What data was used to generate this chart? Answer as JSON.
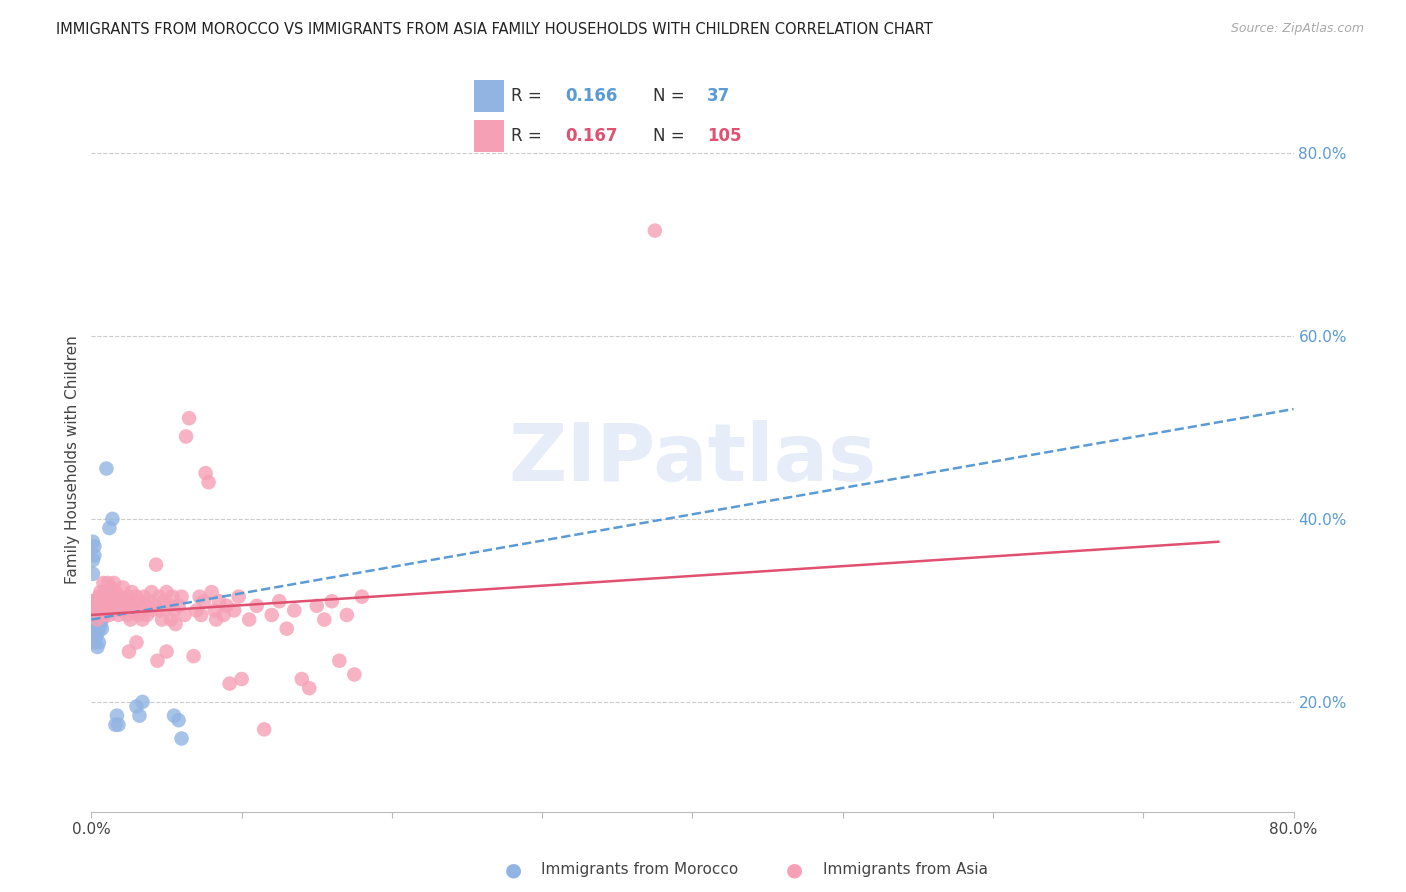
{
  "title": "IMMIGRANTS FROM MOROCCO VS IMMIGRANTS FROM ASIA FAMILY HOUSEHOLDS WITH CHILDREN CORRELATION CHART",
  "source": "Source: ZipAtlas.com",
  "ylabel": "Family Households with Children",
  "xmin": 0.0,
  "xmax": 0.8,
  "ymin": 0.08,
  "ymax": 0.85,
  "right_yticks": [
    0.2,
    0.4,
    0.6,
    0.8
  ],
  "right_ytick_labels": [
    "20.0%",
    "40.0%",
    "60.0%",
    "80.0%"
  ],
  "morocco_color": "#92b4e3",
  "asia_color": "#f5a0b5",
  "morocco_R": 0.166,
  "morocco_N": 37,
  "asia_R": 0.167,
  "asia_N": 105,
  "watermark": "ZIPatlas",
  "background_color": "#ffffff",
  "grid_color": "#cccccc",
  "axis_label_color": "#5b9bd5",
  "morocco_line_color": "#5b9bd5",
  "asia_line_color": "#e05070",
  "legend_R_color": "#5b9bd5",
  "legend_N_color": "#5b9bd5",
  "legend_R2_color": "#e05070",
  "legend_N2_color": "#e05070",
  "morocco_scatter": [
    [
      0.001,
      0.31
    ],
    [
      0.001,
      0.355
    ],
    [
      0.001,
      0.375
    ],
    [
      0.001,
      0.34
    ],
    [
      0.002,
      0.36
    ],
    [
      0.002,
      0.37
    ],
    [
      0.002,
      0.28
    ],
    [
      0.002,
      0.265
    ],
    [
      0.003,
      0.29
    ],
    [
      0.003,
      0.305
    ],
    [
      0.003,
      0.295
    ],
    [
      0.003,
      0.27
    ],
    [
      0.004,
      0.3
    ],
    [
      0.004,
      0.285
    ],
    [
      0.004,
      0.275
    ],
    [
      0.004,
      0.26
    ],
    [
      0.005,
      0.31
    ],
    [
      0.005,
      0.295
    ],
    [
      0.005,
      0.28
    ],
    [
      0.005,
      0.265
    ],
    [
      0.006,
      0.3
    ],
    [
      0.006,
      0.285
    ],
    [
      0.007,
      0.29
    ],
    [
      0.007,
      0.28
    ],
    [
      0.008,
      0.295
    ],
    [
      0.01,
      0.455
    ],
    [
      0.012,
      0.39
    ],
    [
      0.014,
      0.4
    ],
    [
      0.016,
      0.175
    ],
    [
      0.017,
      0.185
    ],
    [
      0.018,
      0.175
    ],
    [
      0.03,
      0.195
    ],
    [
      0.032,
      0.185
    ],
    [
      0.034,
      0.2
    ],
    [
      0.055,
      0.185
    ],
    [
      0.058,
      0.18
    ],
    [
      0.06,
      0.16
    ]
  ],
  "asia_scatter": [
    [
      0.001,
      0.31
    ],
    [
      0.002,
      0.295
    ],
    [
      0.003,
      0.305
    ],
    [
      0.004,
      0.29
    ],
    [
      0.005,
      0.315
    ],
    [
      0.005,
      0.3
    ],
    [
      0.006,
      0.32
    ],
    [
      0.006,
      0.31
    ],
    [
      0.007,
      0.295
    ],
    [
      0.007,
      0.315
    ],
    [
      0.008,
      0.305
    ],
    [
      0.008,
      0.33
    ],
    [
      0.009,
      0.31
    ],
    [
      0.009,
      0.295
    ],
    [
      0.01,
      0.32
    ],
    [
      0.01,
      0.3
    ],
    [
      0.011,
      0.33
    ],
    [
      0.011,
      0.315
    ],
    [
      0.012,
      0.295
    ],
    [
      0.012,
      0.31
    ],
    [
      0.013,
      0.325
    ],
    [
      0.013,
      0.305
    ],
    [
      0.014,
      0.315
    ],
    [
      0.014,
      0.3
    ],
    [
      0.015,
      0.33
    ],
    [
      0.016,
      0.32
    ],
    [
      0.017,
      0.31
    ],
    [
      0.018,
      0.295
    ],
    [
      0.019,
      0.315
    ],
    [
      0.02,
      0.3
    ],
    [
      0.021,
      0.325
    ],
    [
      0.022,
      0.31
    ],
    [
      0.023,
      0.305
    ],
    [
      0.024,
      0.295
    ],
    [
      0.025,
      0.315
    ],
    [
      0.025,
      0.255
    ],
    [
      0.026,
      0.305
    ],
    [
      0.026,
      0.29
    ],
    [
      0.027,
      0.32
    ],
    [
      0.028,
      0.3
    ],
    [
      0.03,
      0.315
    ],
    [
      0.03,
      0.265
    ],
    [
      0.031,
      0.295
    ],
    [
      0.032,
      0.31
    ],
    [
      0.033,
      0.3
    ],
    [
      0.034,
      0.29
    ],
    [
      0.035,
      0.315
    ],
    [
      0.036,
      0.305
    ],
    [
      0.037,
      0.295
    ],
    [
      0.038,
      0.31
    ],
    [
      0.04,
      0.32
    ],
    [
      0.04,
      0.3
    ],
    [
      0.042,
      0.305
    ],
    [
      0.043,
      0.35
    ],
    [
      0.044,
      0.245
    ],
    [
      0.045,
      0.315
    ],
    [
      0.046,
      0.3
    ],
    [
      0.047,
      0.29
    ],
    [
      0.048,
      0.31
    ],
    [
      0.05,
      0.32
    ],
    [
      0.05,
      0.255
    ],
    [
      0.052,
      0.305
    ],
    [
      0.053,
      0.29
    ],
    [
      0.054,
      0.315
    ],
    [
      0.055,
      0.3
    ],
    [
      0.056,
      0.285
    ],
    [
      0.058,
      0.305
    ],
    [
      0.06,
      0.315
    ],
    [
      0.062,
      0.295
    ],
    [
      0.063,
      0.49
    ],
    [
      0.065,
      0.51
    ],
    [
      0.068,
      0.25
    ],
    [
      0.07,
      0.3
    ],
    [
      0.072,
      0.315
    ],
    [
      0.073,
      0.295
    ],
    [
      0.075,
      0.31
    ],
    [
      0.076,
      0.45
    ],
    [
      0.078,
      0.44
    ],
    [
      0.08,
      0.32
    ],
    [
      0.082,
      0.3
    ],
    [
      0.083,
      0.29
    ],
    [
      0.085,
      0.31
    ],
    [
      0.088,
      0.295
    ],
    [
      0.09,
      0.305
    ],
    [
      0.092,
      0.22
    ],
    [
      0.095,
      0.3
    ],
    [
      0.098,
      0.315
    ],
    [
      0.1,
      0.225
    ],
    [
      0.105,
      0.29
    ],
    [
      0.11,
      0.305
    ],
    [
      0.115,
      0.17
    ],
    [
      0.12,
      0.295
    ],
    [
      0.125,
      0.31
    ],
    [
      0.13,
      0.28
    ],
    [
      0.135,
      0.3
    ],
    [
      0.14,
      0.225
    ],
    [
      0.145,
      0.215
    ],
    [
      0.15,
      0.305
    ],
    [
      0.155,
      0.29
    ],
    [
      0.16,
      0.31
    ],
    [
      0.165,
      0.245
    ],
    [
      0.17,
      0.295
    ],
    [
      0.175,
      0.23
    ],
    [
      0.18,
      0.315
    ],
    [
      0.375,
      0.715
    ]
  ]
}
